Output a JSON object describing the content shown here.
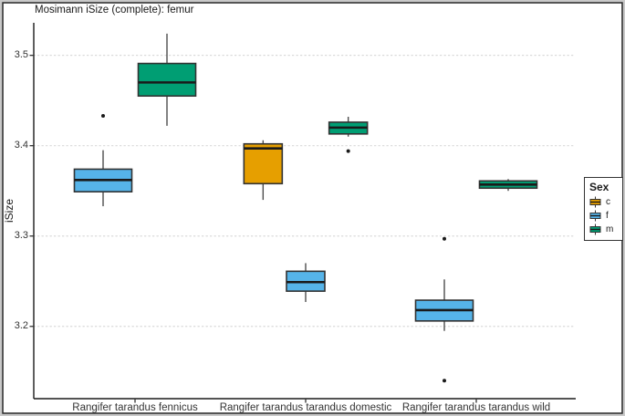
{
  "chart_data": {
    "type": "boxplot",
    "title": "Mosimann iSize (complete): femur",
    "xlabel": "",
    "ylabel": "iSize",
    "categories": [
      "Rangifer tarandus fennicus",
      "Rangifer tarandus tarandus domestic",
      "Rangifer tarandus tarandus wild"
    ],
    "y_ticks": [
      3.5,
      3.4,
      3.3,
      3.2
    ],
    "y_tick_labels": [
      "3.5",
      "3.4",
      "3.3",
      "3.2"
    ],
    "ylim": [
      3.12,
      3.536
    ],
    "grid": "horizontal-dotted",
    "legend_position": "right-outside",
    "legend": {
      "title": "Sex",
      "entries": [
        {
          "label": "c",
          "color": "#E69F00"
        },
        {
          "label": "f",
          "color": "#56B4E9"
        },
        {
          "label": "m",
          "color": "#009E73"
        }
      ]
    },
    "boxes": [
      {
        "category": 0,
        "sex": "f",
        "color": "#56B4E9",
        "low": 3.333,
        "q1": 3.349,
        "median": 3.362,
        "q3": 3.374,
        "high": 3.395,
        "outliers": [
          3.433
        ]
      },
      {
        "category": 0,
        "sex": "m",
        "color": "#009E73",
        "low": 3.422,
        "q1": 3.455,
        "median": 3.47,
        "q3": 3.491,
        "high": 3.524,
        "outliers": []
      },
      {
        "category": 1,
        "sex": "c",
        "color": "#E69F00",
        "low": 3.34,
        "q1": 3.358,
        "median": 3.397,
        "q3": 3.402,
        "high": 3.406,
        "outliers": []
      },
      {
        "category": 1,
        "sex": "f",
        "color": "#56B4E9",
        "low": 3.227,
        "q1": 3.239,
        "median": 3.249,
        "q3": 3.261,
        "high": 3.27,
        "outliers": []
      },
      {
        "category": 1,
        "sex": "m",
        "color": "#009E73",
        "low": 3.41,
        "q1": 3.413,
        "median": 3.42,
        "q3": 3.426,
        "high": 3.432,
        "outliers": [
          3.394
        ]
      },
      {
        "category": 2,
        "sex": "f",
        "color": "#56B4E9",
        "low": 3.195,
        "q1": 3.206,
        "median": 3.218,
        "q3": 3.229,
        "high": 3.252,
        "outliers": [
          3.297,
          3.14
        ]
      },
      {
        "category": 2,
        "sex": "m",
        "color": "#009E73",
        "low": 3.35,
        "q1": 3.353,
        "median": 3.357,
        "q3": 3.361,
        "high": 3.363,
        "outliers": []
      }
    ],
    "style_colors": {
      "box_stroke": "#333333",
      "median_stroke": "#1a1a1a",
      "whisker_stroke": "#4d4d4d",
      "gridline": "#d9d9d9",
      "axis": "#1a1a1a",
      "outlier": "#1a1a1a"
    }
  }
}
